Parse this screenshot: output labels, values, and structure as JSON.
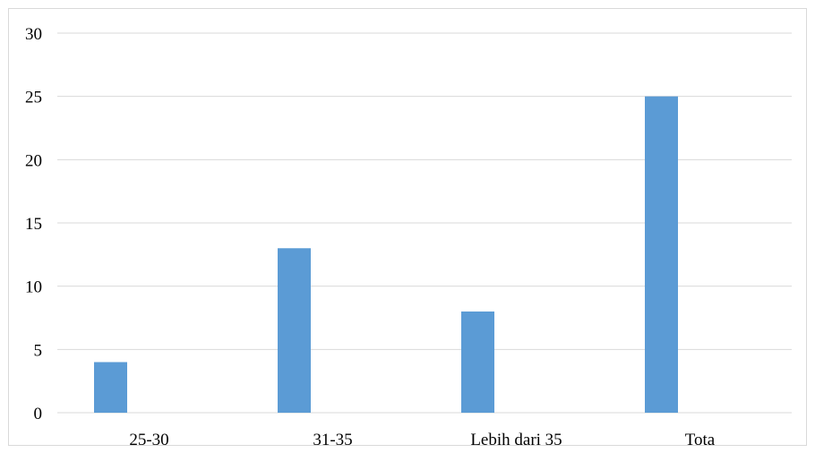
{
  "chart_data": {
    "type": "bar",
    "title": "",
    "xlabel": "",
    "ylabel": "",
    "categories": [
      "25-30",
      "31-35",
      "Lebih dari 35",
      "Tota"
    ],
    "values": [
      4,
      13,
      8,
      25
    ],
    "ylim": [
      0,
      30
    ],
    "yticks": [
      0,
      5,
      10,
      15,
      20,
      25,
      30
    ],
    "grid": true,
    "legend": "none",
    "bar_color": "#5b9bd5",
    "grid_color": "#d9d9d9"
  }
}
